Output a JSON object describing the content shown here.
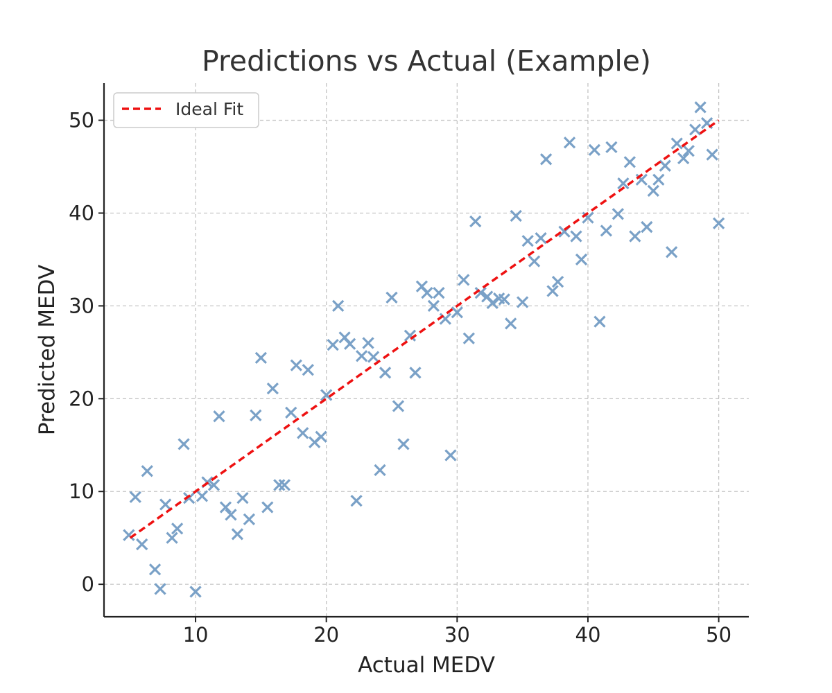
{
  "chart_data": {
    "type": "scatter",
    "title": "Predictions vs Actual (Example)",
    "xlabel": "Actual MEDV",
    "ylabel": "Predicted MEDV",
    "xlim": [
      3,
      52.3
    ],
    "ylim": [
      -3.5,
      54
    ],
    "xticks": [
      10,
      20,
      30,
      40,
      50
    ],
    "yticks": [
      0,
      10,
      20,
      30,
      40,
      50
    ],
    "grid": true,
    "legend_position": "top-left",
    "series": [
      {
        "name": "",
        "marker": "x",
        "color": "#7aa1c7",
        "points": [
          [
            4.9,
            5.3
          ],
          [
            5.4,
            9.4
          ],
          [
            5.9,
            4.3
          ],
          [
            6.3,
            12.2
          ],
          [
            6.9,
            1.6
          ],
          [
            7.3,
            -0.5
          ],
          [
            7.7,
            8.6
          ],
          [
            8.2,
            5.0
          ],
          [
            8.6,
            6.0
          ],
          [
            9.1,
            15.1
          ],
          [
            9.5,
            9.3
          ],
          [
            10.0,
            -0.8
          ],
          [
            10.5,
            9.5
          ],
          [
            10.9,
            11.0
          ],
          [
            11.4,
            10.7
          ],
          [
            11.8,
            18.1
          ],
          [
            12.3,
            8.3
          ],
          [
            12.7,
            7.5
          ],
          [
            13.2,
            5.4
          ],
          [
            13.6,
            9.3
          ],
          [
            14.1,
            7.0
          ],
          [
            14.6,
            18.2
          ],
          [
            15.0,
            24.4
          ],
          [
            15.5,
            8.3
          ],
          [
            15.9,
            21.1
          ],
          [
            16.4,
            10.7
          ],
          [
            16.8,
            10.7
          ],
          [
            17.3,
            18.5
          ],
          [
            17.7,
            23.6
          ],
          [
            18.2,
            16.3
          ],
          [
            18.6,
            23.1
          ],
          [
            19.1,
            15.3
          ],
          [
            19.6,
            15.9
          ],
          [
            20.0,
            20.4
          ],
          [
            20.5,
            25.8
          ],
          [
            20.9,
            30.0
          ],
          [
            21.4,
            26.6
          ],
          [
            21.8,
            25.9
          ],
          [
            22.3,
            9.0
          ],
          [
            22.7,
            24.6
          ],
          [
            23.2,
            26.0
          ],
          [
            23.6,
            24.5
          ],
          [
            24.1,
            12.3
          ],
          [
            24.5,
            22.8
          ],
          [
            25.0,
            30.9
          ],
          [
            25.5,
            19.2
          ],
          [
            25.9,
            15.1
          ],
          [
            26.4,
            26.8
          ],
          [
            26.8,
            22.8
          ],
          [
            27.3,
            32.1
          ],
          [
            27.7,
            31.4
          ],
          [
            28.2,
            30.0
          ],
          [
            28.6,
            31.4
          ],
          [
            29.1,
            28.6
          ],
          [
            29.5,
            13.9
          ],
          [
            30.0,
            29.3
          ],
          [
            30.5,
            32.8
          ],
          [
            30.9,
            26.5
          ],
          [
            31.4,
            39.1
          ],
          [
            31.8,
            31.4
          ],
          [
            32.3,
            31.0
          ],
          [
            32.7,
            30.3
          ],
          [
            33.2,
            30.8
          ],
          [
            33.6,
            30.7
          ],
          [
            34.1,
            28.1
          ],
          [
            34.5,
            39.7
          ],
          [
            35.0,
            30.4
          ],
          [
            35.4,
            37.0
          ],
          [
            35.9,
            34.8
          ],
          [
            36.4,
            37.3
          ],
          [
            36.8,
            45.8
          ],
          [
            37.3,
            31.6
          ],
          [
            37.7,
            32.6
          ],
          [
            38.2,
            38.0
          ],
          [
            38.6,
            47.6
          ],
          [
            39.1,
            37.5
          ],
          [
            39.5,
            35.0
          ],
          [
            40.0,
            39.5
          ],
          [
            40.5,
            46.8
          ],
          [
            40.9,
            28.3
          ],
          [
            41.4,
            38.1
          ],
          [
            41.8,
            47.1
          ],
          [
            42.3,
            39.9
          ],
          [
            42.7,
            43.2
          ],
          [
            43.2,
            45.5
          ],
          [
            43.6,
            37.5
          ],
          [
            44.1,
            43.6
          ],
          [
            44.5,
            38.5
          ],
          [
            45.0,
            42.4
          ],
          [
            45.4,
            43.6
          ],
          [
            45.9,
            45.1
          ],
          [
            46.4,
            35.8
          ],
          [
            46.8,
            47.5
          ],
          [
            47.3,
            45.9
          ],
          [
            47.7,
            46.7
          ],
          [
            48.2,
            49.0
          ],
          [
            48.6,
            51.4
          ],
          [
            49.1,
            49.7
          ],
          [
            49.5,
            46.3
          ],
          [
            50.0,
            38.9
          ]
        ]
      },
      {
        "name": "Ideal Fit",
        "type": "line",
        "style": "dashed",
        "color": "#ee1111",
        "points": [
          [
            5,
            5
          ],
          [
            50,
            50
          ]
        ]
      }
    ]
  }
}
